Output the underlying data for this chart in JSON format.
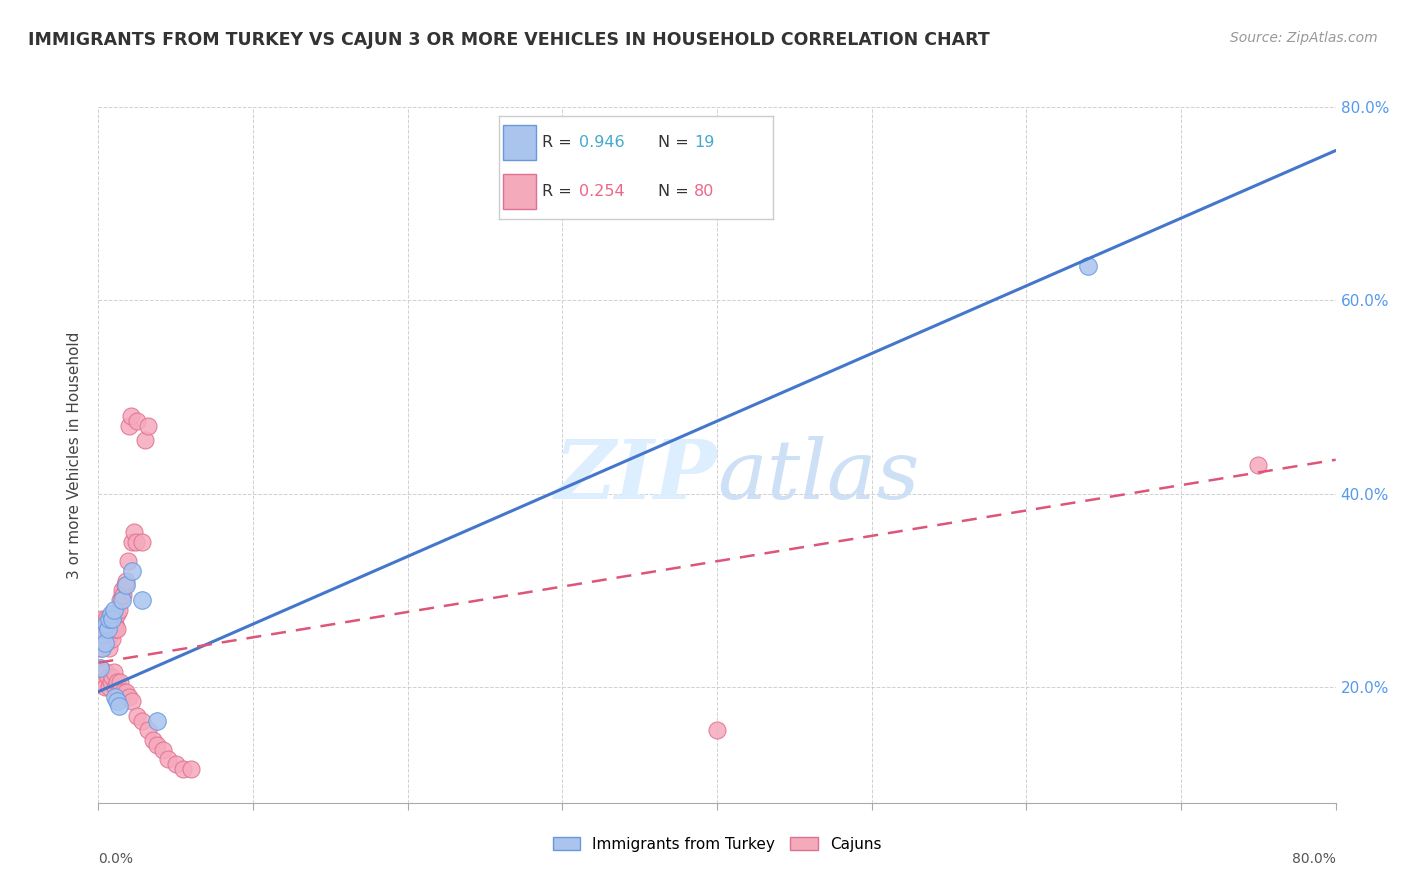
{
  "title": "IMMIGRANTS FROM TURKEY VS CAJUN 3 OR MORE VEHICLES IN HOUSEHOLD CORRELATION CHART",
  "source": "Source: ZipAtlas.com",
  "ylabel": "3 or more Vehicles in Household",
  "xlim": [
    0.0,
    0.8
  ],
  "ylim": [
    0.08,
    0.8
  ],
  "legend_r1_label": "R = ",
  "legend_r1_val": "0.946",
  "legend_n1_label": "N = ",
  "legend_n1_val": " 19",
  "legend_r2_label": "R = ",
  "legend_r2_val": "0.254",
  "legend_n2_label": "N = ",
  "legend_n2_val": " 80",
  "turkey_color": "#aac4ee",
  "turkey_edge": "#6699dd",
  "cajun_color": "#f5aabc",
  "cajun_edge": "#e07090",
  "turkey_line_color": "#4477cc",
  "cajun_line_color": "#dd5577",
  "legend_val_color1": "#44aacc",
  "legend_val_color2": "#ee6688",
  "watermark_color": "#ddeeff",
  "background_color": "#ffffff",
  "grid_color": "#cccccc",
  "right_axis_color": "#5599ee",
  "turkey_line_y0": 0.195,
  "turkey_line_y1": 0.755,
  "cajun_line_y0": 0.225,
  "cajun_line_y1": 0.435,
  "turkey_points_x": [
    0.001,
    0.002,
    0.003,
    0.004,
    0.005,
    0.006,
    0.007,
    0.008,
    0.009,
    0.01,
    0.011,
    0.012,
    0.013,
    0.015,
    0.018,
    0.022,
    0.028,
    0.038,
    0.64
  ],
  "turkey_points_y": [
    0.22,
    0.24,
    0.255,
    0.245,
    0.265,
    0.26,
    0.27,
    0.275,
    0.27,
    0.28,
    0.19,
    0.185,
    0.18,
    0.29,
    0.305,
    0.32,
    0.29,
    0.165,
    0.635
  ],
  "cajun_points_x": [
    0.001,
    0.001,
    0.002,
    0.002,
    0.002,
    0.003,
    0.003,
    0.003,
    0.004,
    0.004,
    0.004,
    0.005,
    0.005,
    0.005,
    0.005,
    0.006,
    0.006,
    0.006,
    0.007,
    0.007,
    0.007,
    0.007,
    0.008,
    0.008,
    0.008,
    0.009,
    0.009,
    0.01,
    0.01,
    0.011,
    0.011,
    0.012,
    0.012,
    0.013,
    0.014,
    0.015,
    0.015,
    0.016,
    0.017,
    0.018,
    0.019,
    0.02,
    0.021,
    0.022,
    0.023,
    0.024,
    0.025,
    0.028,
    0.03,
    0.032,
    0.001,
    0.002,
    0.003,
    0.004,
    0.005,
    0.006,
    0.007,
    0.008,
    0.009,
    0.01,
    0.011,
    0.012,
    0.013,
    0.014,
    0.016,
    0.018,
    0.02,
    0.022,
    0.025,
    0.028,
    0.032,
    0.035,
    0.038,
    0.042,
    0.045,
    0.05,
    0.055,
    0.06,
    0.4,
    0.75
  ],
  "cajun_points_y": [
    0.24,
    0.25,
    0.26,
    0.255,
    0.27,
    0.265,
    0.255,
    0.245,
    0.26,
    0.265,
    0.25,
    0.255,
    0.27,
    0.26,
    0.245,
    0.265,
    0.255,
    0.26,
    0.265,
    0.255,
    0.24,
    0.27,
    0.26,
    0.27,
    0.255,
    0.265,
    0.25,
    0.275,
    0.27,
    0.265,
    0.26,
    0.26,
    0.275,
    0.28,
    0.29,
    0.295,
    0.3,
    0.295,
    0.305,
    0.31,
    0.33,
    0.47,
    0.48,
    0.35,
    0.36,
    0.35,
    0.475,
    0.35,
    0.455,
    0.47,
    0.22,
    0.215,
    0.205,
    0.2,
    0.215,
    0.21,
    0.2,
    0.205,
    0.21,
    0.215,
    0.2,
    0.205,
    0.195,
    0.205,
    0.195,
    0.195,
    0.19,
    0.185,
    0.17,
    0.165,
    0.155,
    0.145,
    0.14,
    0.135,
    0.125,
    0.12,
    0.115,
    0.115,
    0.155,
    0.43
  ]
}
